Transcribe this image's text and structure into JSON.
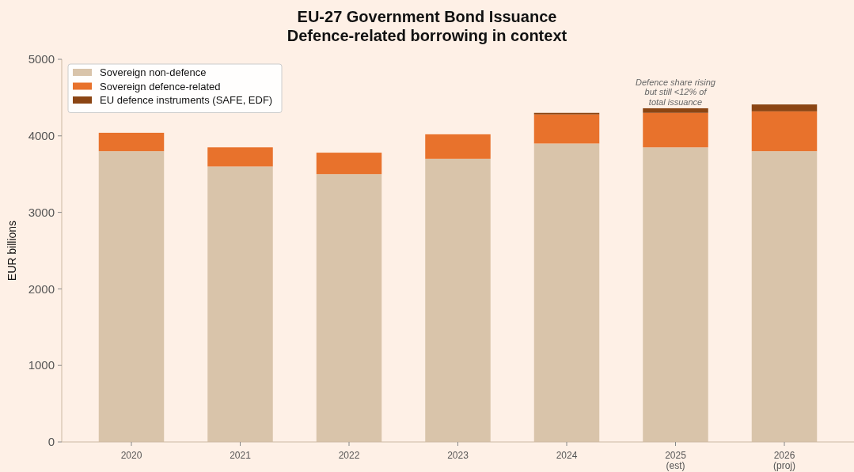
{
  "chart_data": {
    "type": "bar",
    "title": "EU-27 Government Bond Issuance\nDefence-related borrowing in context",
    "ylabel": "EUR billions",
    "categories": [
      "2020",
      "2021",
      "2022",
      "2023",
      "2024",
      "2025\n(est)",
      "2026\n(proj)"
    ],
    "stacked": true,
    "ylim": [
      0,
      5000
    ],
    "yticks": [
      0,
      1000,
      2000,
      3000,
      4000,
      5000
    ],
    "legend": "top left",
    "grid": false,
    "series": [
      {
        "name": "Sovereign non-defence",
        "color": "#d9c4aa",
        "values": [
          3800,
          3600,
          3500,
          3700,
          3900,
          3850,
          3800
        ]
      },
      {
        "name": "Sovereign defence-related",
        "color": "#e8722c",
        "values": [
          240,
          250,
          280,
          320,
          380,
          450,
          520
        ]
      },
      {
        "name": "EU defence instruments (SAFE, EDF)",
        "color": "#8b4513",
        "values": [
          0,
          0,
          0,
          0,
          20,
          60,
          90
        ]
      }
    ],
    "annotations": [
      {
        "text": "Defence share rising\nbut still <12% of\ntotal issuance",
        "x": "2025\n(est)",
        "y": 4360
      }
    ]
  }
}
